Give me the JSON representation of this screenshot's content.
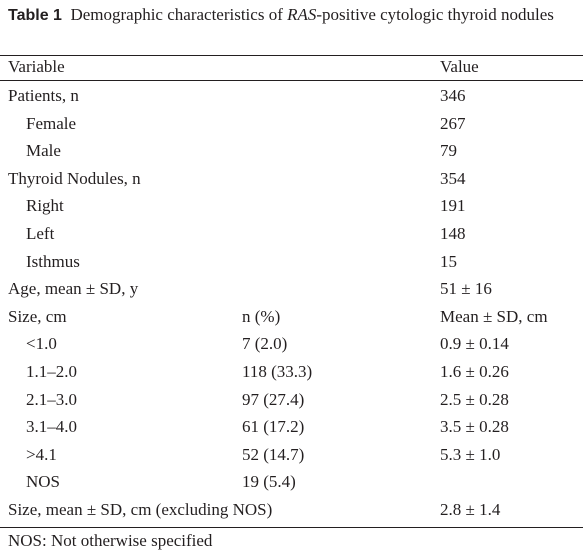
{
  "caption": {
    "label": "Table 1",
    "text_before": "Demographic characteristics of ",
    "italic": "RAS",
    "text_after": "-positive cytologic thyroid nodules"
  },
  "table": {
    "header": {
      "variable": "Variable",
      "value": "Value"
    },
    "rows": [
      {
        "variable": "Patients, n",
        "value": "346",
        "children": [
          {
            "variable": "Female",
            "value": "267"
          },
          {
            "variable": "Male",
            "value": "79"
          }
        ]
      },
      {
        "variable": "Thyroid Nodules, n",
        "value": "354",
        "children": [
          {
            "variable": "Right",
            "value": "191"
          },
          {
            "variable": "Left",
            "value": "148"
          },
          {
            "variable": "Isthmus",
            "value": "15"
          }
        ]
      },
      {
        "variable": "Age, mean ± SD, y",
        "value": "51 ± 16"
      },
      {
        "variable": "Size, cm",
        "n": "n (%)",
        "value": "Mean ± SD, cm",
        "children": [
          {
            "variable": "<1.0",
            "n": "7 (2.0)",
            "value": "0.9 ± 0.14"
          },
          {
            "variable": "1.1–2.0",
            "n": "118 (33.3)",
            "value": "1.6 ± 0.26"
          },
          {
            "variable": "2.1–3.0",
            "n": "97 (27.4)",
            "value": "2.5 ± 0.28"
          },
          {
            "variable": "3.1–4.0",
            "n": "61 (17.2)",
            "value": "3.5 ± 0.28"
          },
          {
            "variable": ">4.1",
            "n": "52 (14.7)",
            "value": "5.3 ± 1.0"
          },
          {
            "variable": "NOS",
            "n": "19 (5.4)"
          }
        ]
      },
      {
        "variable": "Size, mean ± SD, cm (excluding NOS)",
        "value": "2.8 ± 1.4"
      }
    ]
  },
  "footnote": "NOS: Not otherwise specified"
}
